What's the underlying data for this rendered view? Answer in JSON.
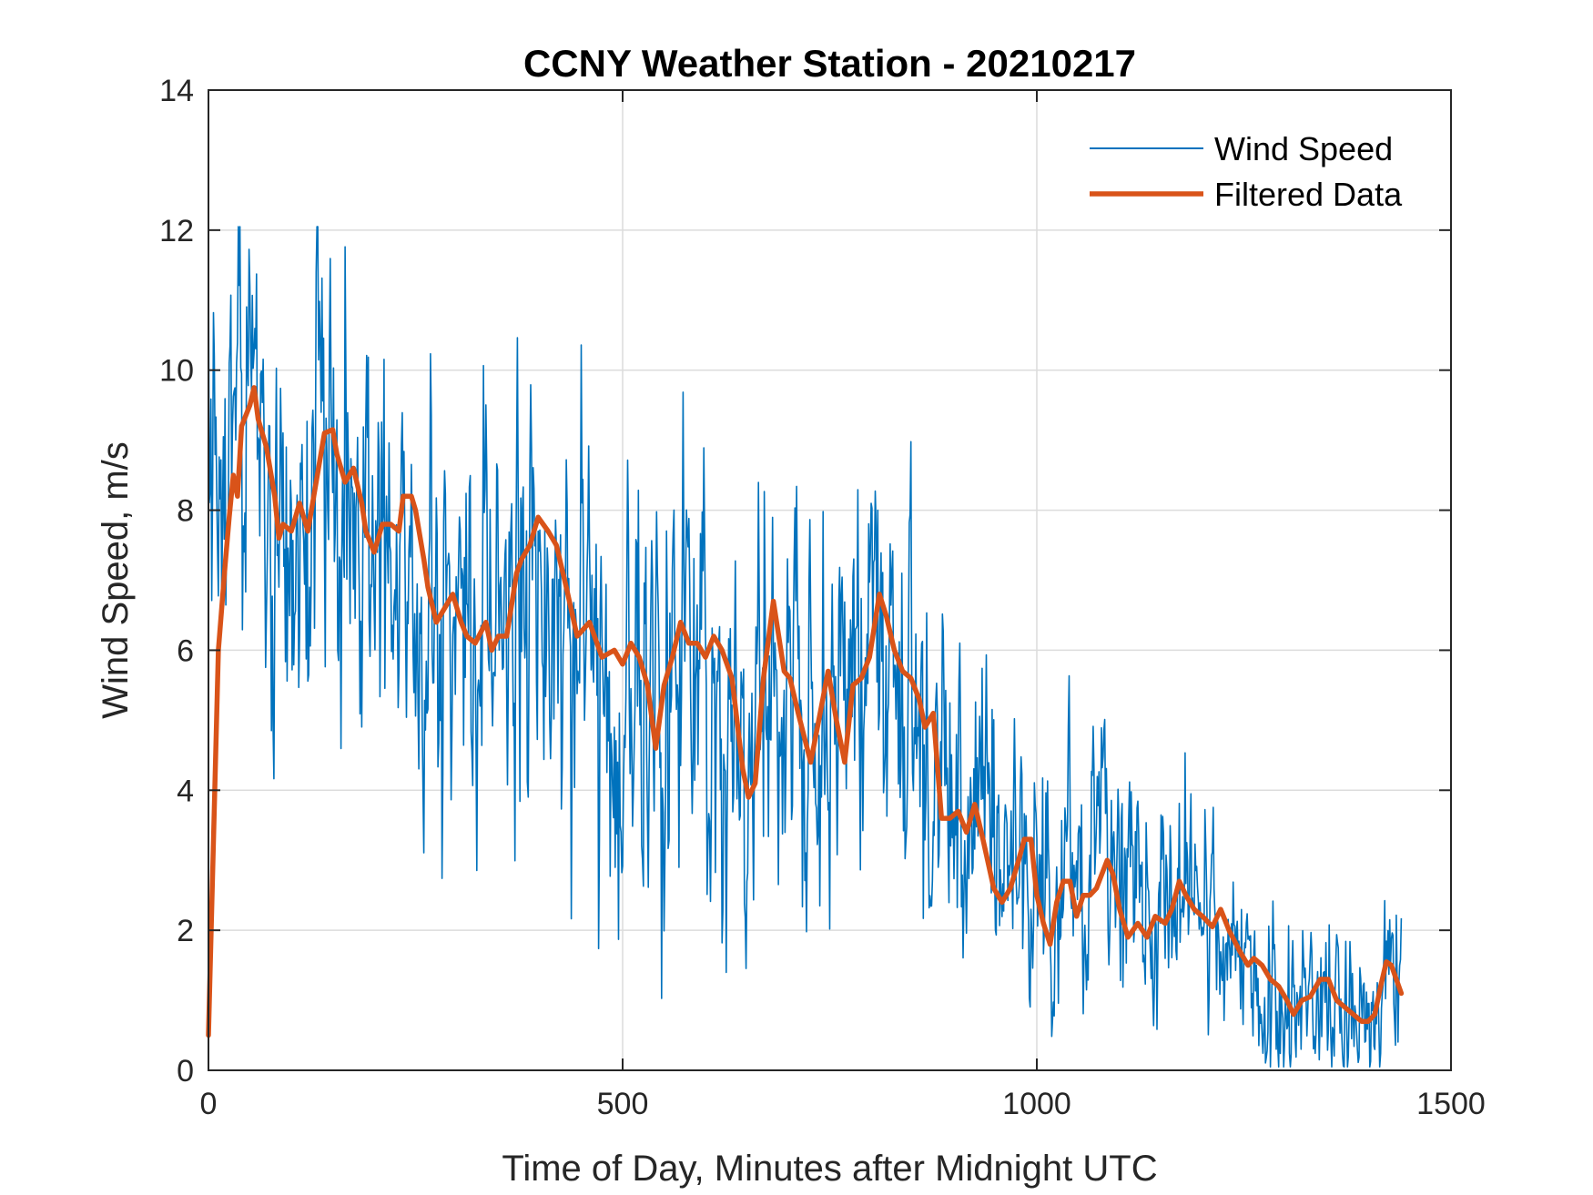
{
  "chart_data": {
    "type": "line",
    "title": "CCNY Weather Station - 20210217",
    "xlabel": "Time of Day, Minutes after Midnight UTC",
    "ylabel": "Wind Speed, m/s",
    "xlim": [
      0,
      1500
    ],
    "ylim": [
      0,
      14
    ],
    "xticks": [
      0,
      500,
      1000,
      1500
    ],
    "yticks": [
      0,
      2,
      4,
      6,
      8,
      10,
      12,
      14
    ],
    "xtick_labels": [
      "0",
      "500",
      "1000",
      "1500"
    ],
    "ytick_labels": [
      "0",
      "2",
      "4",
      "6",
      "8",
      "10",
      "12",
      "14"
    ],
    "grid": true,
    "legend_position": "top-right",
    "series": [
      {
        "name": "Wind Speed",
        "color": "#0072BD",
        "line_style": "thin",
        "x_start": 0,
        "x_end": 1440,
        "noise_seed": 20210217,
        "trend_x": [
          0,
          20,
          50,
          80,
          120,
          150,
          190,
          230,
          260,
          300,
          350,
          390,
          430,
          470,
          500,
          560,
          600,
          650,
          680,
          730,
          760,
          810,
          860,
          900,
          950,
          990,
          1040,
          1090,
          1130,
          1170,
          1210,
          1260,
          1300,
          1340,
          1380,
          1410,
          1425,
          1440
        ],
        "trend_y": [
          9.5,
          8.3,
          9.6,
          7.6,
          8.0,
          9.0,
          7.6,
          8.1,
          6.6,
          6.2,
          6.6,
          7.7,
          6.0,
          5.9,
          5.0,
          6.2,
          5.8,
          4.0,
          6.4,
          4.6,
          5.6,
          6.6,
          5.1,
          3.6,
          3.4,
          2.6,
          2.4,
          2.8,
          2.0,
          2.6,
          2.1,
          1.5,
          1.0,
          1.2,
          0.8,
          0.8,
          1.6,
          1.2
        ],
        "noise_amplitude_x": [
          0,
          300,
          850,
          900,
          1000,
          1300,
          1440
        ],
        "noise_amplitude_y": [
          1.7,
          1.6,
          1.5,
          1.2,
          1.0,
          0.7,
          0.6
        ]
      },
      {
        "name": "Filtered Data",
        "color": "#D95319",
        "line_style": "thick",
        "x": [
          0,
          12,
          20,
          25,
          30,
          35,
          40,
          50,
          55,
          60,
          70,
          80,
          85,
          90,
          100,
          105,
          110,
          120,
          130,
          140,
          150,
          155,
          165,
          175,
          185,
          190,
          200,
          210,
          220,
          230,
          235,
          245,
          250,
          260,
          265,
          275,
          285,
          295,
          305,
          312,
          322,
          335,
          342,
          350,
          360,
          372,
          378,
          388,
          398,
          410,
          420,
          432,
          445,
          460,
          475,
          490,
          500,
          510,
          520,
          530,
          540,
          550,
          560,
          570,
          580,
          590,
          600,
          610,
          620,
          632,
          645,
          652,
          660,
          670,
          682,
          695,
          702,
          712,
          727,
          740,
          748,
          758,
          768,
          778,
          788,
          798,
          810,
          818,
          828,
          838,
          848,
          858,
          865,
          875,
          885,
          895,
          905,
          915,
          925,
          935,
          948,
          958,
          968,
          978,
          985,
          993,
          1000,
          1008,
          1016,
          1024,
          1032,
          1040,
          1048,
          1056,
          1064,
          1072,
          1085,
          1092,
          1100,
          1110,
          1122,
          1133,
          1143,
          1155,
          1163,
          1172,
          1180,
          1190,
          1200,
          1212,
          1222,
          1232,
          1245,
          1255,
          1262,
          1272,
          1282,
          1292,
          1302,
          1310,
          1320,
          1330,
          1342,
          1352,
          1362,
          1372,
          1382,
          1392,
          1400,
          1408,
          1415,
          1422,
          1428,
          1434,
          1440
        ],
        "y": [
          0.5,
          6.0,
          7.2,
          7.9,
          8.5,
          8.2,
          9.2,
          9.5,
          9.75,
          9.3,
          8.9,
          8.2,
          7.6,
          7.8,
          7.7,
          7.9,
          8.1,
          7.7,
          8.4,
          9.1,
          9.15,
          8.8,
          8.4,
          8.6,
          8.1,
          7.7,
          7.4,
          7.8,
          7.8,
          7.7,
          8.2,
          8.2,
          8.0,
          7.3,
          6.9,
          6.4,
          6.6,
          6.8,
          6.4,
          6.2,
          6.1,
          6.4,
          6.0,
          6.2,
          6.2,
          7.1,
          7.3,
          7.5,
          7.9,
          7.7,
          7.5,
          6.9,
          6.2,
          6.4,
          5.9,
          6.0,
          5.8,
          6.1,
          5.9,
          5.5,
          4.6,
          5.5,
          5.9,
          6.4,
          6.1,
          6.1,
          5.9,
          6.2,
          6.0,
          5.6,
          4.3,
          3.9,
          4.1,
          5.6,
          6.7,
          5.7,
          5.6,
          5.1,
          4.4,
          5.2,
          5.7,
          5.0,
          4.4,
          5.5,
          5.6,
          5.9,
          6.8,
          6.5,
          6.0,
          5.7,
          5.6,
          5.3,
          4.9,
          5.1,
          3.6,
          3.6,
          3.7,
          3.4,
          3.8,
          3.3,
          2.6,
          2.4,
          2.6,
          3.0,
          3.3,
          3.3,
          2.5,
          2.1,
          1.8,
          2.4,
          2.7,
          2.7,
          2.2,
          2.5,
          2.5,
          2.6,
          3.0,
          2.8,
          2.3,
          1.9,
          2.1,
          1.9,
          2.2,
          2.1,
          2.3,
          2.7,
          2.5,
          2.3,
          2.2,
          2.05,
          2.3,
          2.0,
          1.7,
          1.5,
          1.6,
          1.5,
          1.3,
          1.2,
          1.0,
          0.8,
          1.0,
          1.05,
          1.3,
          1.3,
          1.0,
          0.9,
          0.8,
          0.7,
          0.7,
          0.8,
          1.2,
          1.55,
          1.5,
          1.3,
          1.1
        ]
      }
    ]
  }
}
